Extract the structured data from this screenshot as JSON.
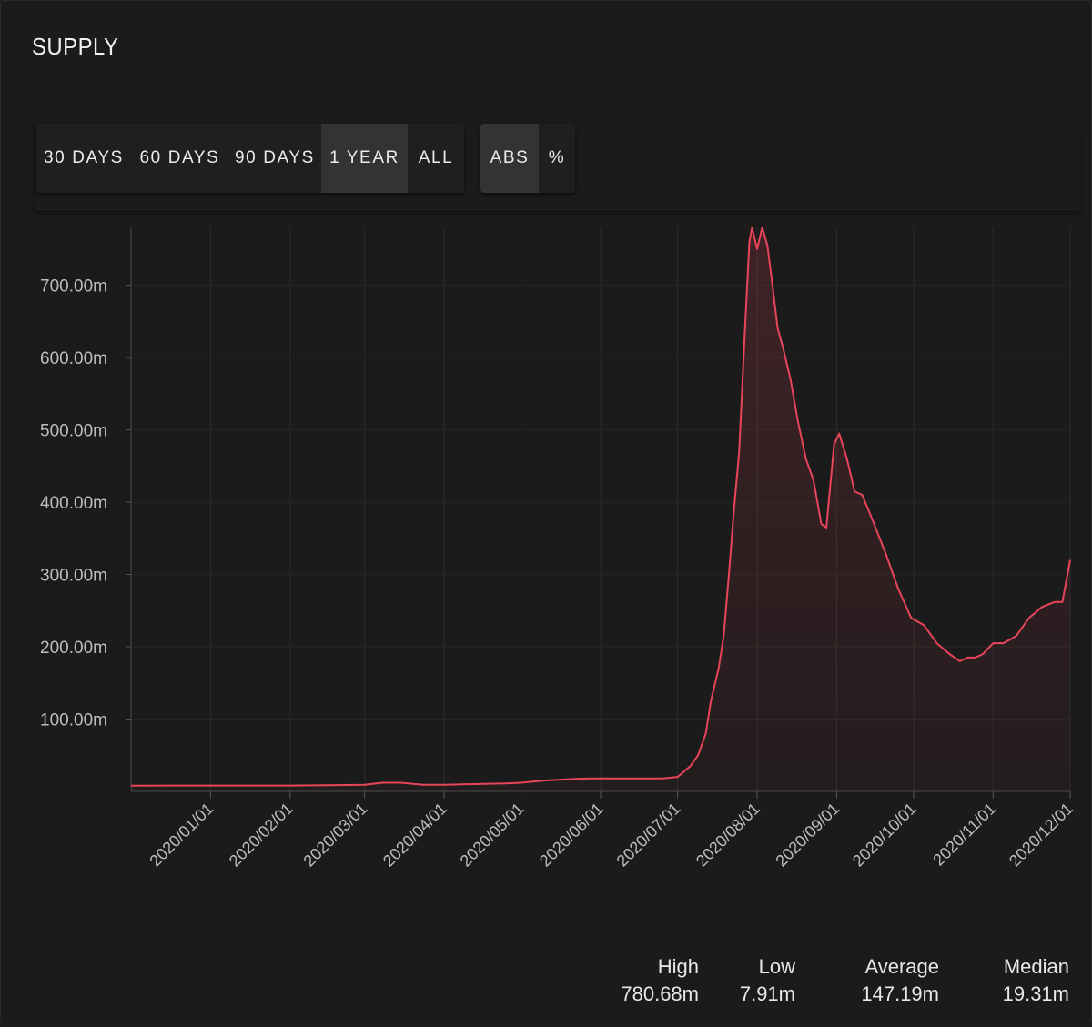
{
  "header": {
    "title": "SUPPLY"
  },
  "range_buttons": [
    {
      "label": "30 DAYS",
      "active": false
    },
    {
      "label": "60 DAYS",
      "active": false
    },
    {
      "label": "90 DAYS",
      "active": false
    },
    {
      "label": "1 YEAR",
      "active": true
    },
    {
      "label": "ALL",
      "active": false
    }
  ],
  "mode_buttons": [
    {
      "label": "ABS",
      "active": true
    },
    {
      "label": "%",
      "active": false
    }
  ],
  "stats": [
    {
      "label": "High",
      "value": "780.68m"
    },
    {
      "label": "Low",
      "value": "7.91m"
    },
    {
      "label": "Average",
      "value": "147.19m"
    },
    {
      "label": "Median",
      "value": "19.31m"
    }
  ],
  "colors": {
    "line": "#e8455a",
    "background": "#1b1b1b",
    "grid": "#2b2b2b",
    "active_button": "#333333"
  },
  "chart_data": {
    "type": "area",
    "title": "SUPPLY",
    "xlabel": "",
    "ylabel": "",
    "x_ticks": [
      "2020/01/01",
      "2020/02/01",
      "2020/03/01",
      "2020/04/01",
      "2020/05/01",
      "2020/06/01",
      "2020/07/01",
      "2020/08/01",
      "2020/09/01",
      "2020/10/01",
      "2020/11/01",
      "2020/12/01"
    ],
    "y_ticks": [
      "100.00m",
      "200.00m",
      "300.00m",
      "400.00m",
      "500.00m",
      "600.00m",
      "700.00m"
    ],
    "y_tick_values": [
      100,
      200,
      300,
      400,
      500,
      600,
      700
    ],
    "xlim": [
      "2019-12-01",
      "2020-12-01"
    ],
    "ylim": [
      0,
      780
    ],
    "grid": true,
    "legend": "none",
    "series": [
      {
        "values": [
          [
            "2019-12-01",
            7.9
          ],
          [
            "2019-12-15",
            8
          ],
          [
            "2020-01-01",
            8
          ],
          [
            "2020-02-01",
            8
          ],
          [
            "2020-03-01",
            9
          ],
          [
            "2020-03-08",
            12
          ],
          [
            "2020-03-15",
            12
          ],
          [
            "2020-03-24",
            9
          ],
          [
            "2020-04-01",
            9
          ],
          [
            "2020-04-10",
            10
          ],
          [
            "2020-04-25",
            11
          ],
          [
            "2020-05-01",
            12
          ],
          [
            "2020-05-10",
            15
          ],
          [
            "2020-05-20",
            17
          ],
          [
            "2020-05-28",
            18
          ],
          [
            "2020-06-01",
            18
          ],
          [
            "2020-06-15",
            18
          ],
          [
            "2020-06-25",
            18
          ],
          [
            "2020-07-01",
            20
          ],
          [
            "2020-07-06",
            35
          ],
          [
            "2020-07-09",
            50
          ],
          [
            "2020-07-12",
            80
          ],
          [
            "2020-07-14",
            125
          ],
          [
            "2020-07-17",
            170
          ],
          [
            "2020-07-19",
            215
          ],
          [
            "2020-07-21",
            300
          ],
          [
            "2020-07-23",
            390
          ],
          [
            "2020-07-25",
            470
          ],
          [
            "2020-07-27",
            620
          ],
          [
            "2020-07-29",
            760
          ],
          [
            "2020-07-30",
            780
          ],
          [
            "2020-08-01",
            750
          ],
          [
            "2020-08-03",
            780
          ],
          [
            "2020-08-05",
            755
          ],
          [
            "2020-08-07",
            700
          ],
          [
            "2020-08-09",
            640
          ],
          [
            "2020-08-11",
            615
          ],
          [
            "2020-08-14",
            570
          ],
          [
            "2020-08-17",
            510
          ],
          [
            "2020-08-20",
            460
          ],
          [
            "2020-08-23",
            430
          ],
          [
            "2020-08-26",
            370
          ],
          [
            "2020-08-28",
            365
          ],
          [
            "2020-08-31",
            480
          ],
          [
            "2020-09-02",
            495
          ],
          [
            "2020-09-05",
            460
          ],
          [
            "2020-09-08",
            415
          ],
          [
            "2020-09-11",
            410
          ],
          [
            "2020-09-15",
            375
          ],
          [
            "2020-09-20",
            330
          ],
          [
            "2020-09-25",
            280
          ],
          [
            "2020-09-30",
            240
          ],
          [
            "2020-10-05",
            230
          ],
          [
            "2020-10-10",
            205
          ],
          [
            "2020-10-15",
            190
          ],
          [
            "2020-10-19",
            180
          ],
          [
            "2020-10-22",
            185
          ],
          [
            "2020-10-25",
            185
          ],
          [
            "2020-10-28",
            190
          ],
          [
            "2020-11-01",
            205
          ],
          [
            "2020-11-05",
            205
          ],
          [
            "2020-11-10",
            215
          ],
          [
            "2020-11-15",
            240
          ],
          [
            "2020-11-20",
            255
          ],
          [
            "2020-11-25",
            262
          ],
          [
            "2020-11-28",
            262
          ],
          [
            "2020-12-01",
            320
          ]
        ]
      }
    ]
  }
}
